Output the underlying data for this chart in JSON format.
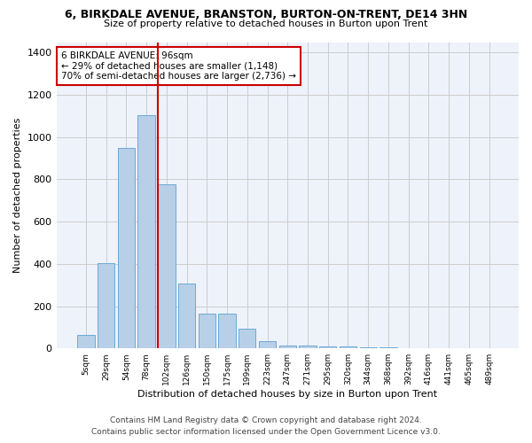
{
  "title1": "6, BIRKDALE AVENUE, BRANSTON, BURTON-ON-TRENT, DE14 3HN",
  "title2": "Size of property relative to detached houses in Burton upon Trent",
  "xlabel": "Distribution of detached houses by size in Burton upon Trent",
  "ylabel": "Number of detached properties",
  "footnote1": "Contains HM Land Registry data © Crown copyright and database right 2024.",
  "footnote2": "Contains public sector information licensed under the Open Government Licence v3.0.",
  "annotation_line1": "6 BIRKDALE AVENUE: 96sqm",
  "annotation_line2": "← 29% of detached houses are smaller (1,148)",
  "annotation_line3": "70% of semi-detached houses are larger (2,736) →",
  "bar_color": "#b8cfe8",
  "bar_edge_color": "#6aaad4",
  "grid_color": "#cccccc",
  "bg_color": "#eef2fb",
  "red_line_color": "#cc0000",
  "annotation_box_color": "#cc0000",
  "categories": [
    "5sqm",
    "29sqm",
    "54sqm",
    "78sqm",
    "102sqm",
    "126sqm",
    "150sqm",
    "175sqm",
    "199sqm",
    "223sqm",
    "247sqm",
    "271sqm",
    "295sqm",
    "320sqm",
    "344sqm",
    "368sqm",
    "392sqm",
    "416sqm",
    "441sqm",
    "465sqm",
    "489sqm"
  ],
  "values": [
    65,
    405,
    950,
    1105,
    775,
    305,
    165,
    165,
    95,
    35,
    15,
    15,
    10,
    8,
    5,
    3,
    2,
    2,
    2,
    2,
    2
  ],
  "red_line_bar_index": 4,
  "ylim": [
    0,
    1450
  ],
  "yticks": [
    0,
    200,
    400,
    600,
    800,
    1000,
    1200,
    1400
  ]
}
